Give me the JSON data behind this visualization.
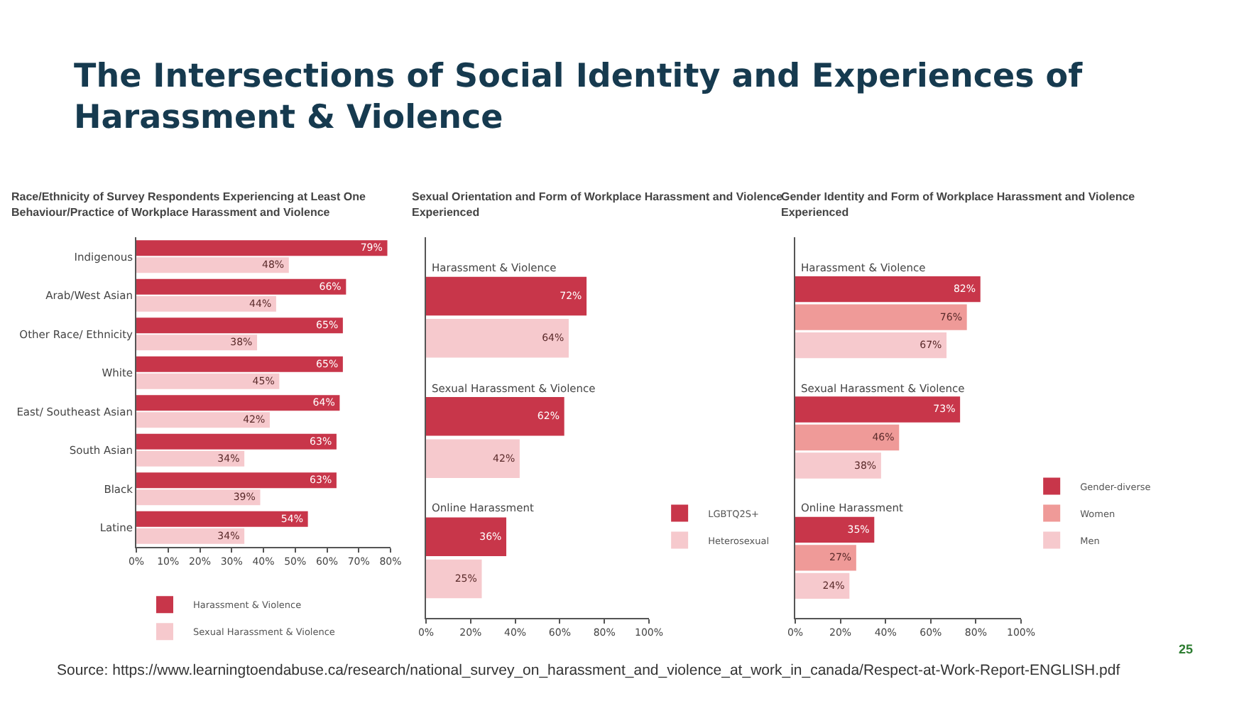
{
  "chart_data": [
    {
      "type": "other",
      "title": "The Intersections of Social Identity and Experiences of Harassment & Violence",
      "annotations": [
        "Source: https://www.learningtoendabuse.ca/research/national_survey_on_harassment_and_violence_at_work_in_canada/Respect-at-Work-Report-ENGLISH.pdf",
        "25"
      ]
    },
    {
      "type": "bar",
      "orientation": "horizontal",
      "title": "Race/Ethnicity of Survey Respondents Experiencing at Least One Behaviour/Practice of Workplace Harassment and Violence",
      "categories": [
        "Indigenous",
        "Arab/West Asian",
        "Other Race/ Ethnicity",
        "White",
        "East/ Southeast Asian",
        "South Asian",
        "Black",
        "Latine"
      ],
      "series": [
        {
          "name": "Harassment & Violence",
          "color": "#c8364a",
          "values": [
            79,
            66,
            65,
            65,
            64,
            63,
            63,
            54
          ],
          "value_labels": [
            "79%",
            "66%",
            "65%",
            "65%",
            "64%",
            "63%",
            "63%",
            "54%"
          ]
        },
        {
          "name": "Sexual Harassment & Violence",
          "color": "#f6c9cd",
          "values": [
            48,
            44,
            38,
            45,
            42,
            34,
            39,
            34
          ],
          "value_labels": [
            "48%",
            "44%",
            "38%",
            "45%",
            "42%",
            "34%",
            "39%",
            "34%"
          ]
        }
      ],
      "xlim": [
        0,
        80
      ],
      "xticks": [
        {
          "value": 0,
          "label": "0%"
        },
        {
          "value": 10,
          "label": "10%"
        },
        {
          "value": 20,
          "label": "20%"
        },
        {
          "value": 30,
          "label": "30%"
        },
        {
          "value": 40,
          "label": "40%"
        },
        {
          "value": 50,
          "label": "50%"
        },
        {
          "value": 60,
          "label": "60%"
        },
        {
          "value": 70,
          "label": "70%"
        },
        {
          "value": 80,
          "label": "80%"
        }
      ],
      "grid": false,
      "legend": "bottom"
    },
    {
      "type": "bar",
      "orientation": "horizontal",
      "title": "Sexual Orientation and Form of Workplace Harassment and Violence Experienced",
      "categories": [
        "Harassment & Violence",
        "Sexual Harassment & Violence",
        "Online Harassment"
      ],
      "series": [
        {
          "name": "LGBTQ2S+",
          "color": "#c8364a",
          "values": [
            72,
            62,
            36
          ],
          "value_labels": [
            "72%",
            "62%",
            "36%"
          ]
        },
        {
          "name": "Heterosexual",
          "color": "#f6c9cd",
          "values": [
            64,
            42,
            25
          ],
          "value_labels": [
            "64%",
            "42%",
            "25%"
          ]
        }
      ],
      "xlim": [
        0,
        100
      ],
      "xticks": [
        {
          "value": 0,
          "label": "0%"
        },
        {
          "value": 20,
          "label": "20%"
        },
        {
          "value": 40,
          "label": "40%"
        },
        {
          "value": 60,
          "label": "60%"
        },
        {
          "value": 80,
          "label": "80%"
        },
        {
          "value": 100,
          "label": "100%"
        }
      ],
      "grid": false,
      "legend": "right"
    },
    {
      "type": "bar",
      "orientation": "horizontal",
      "title": "Gender Identity and Form of Workplace Harassment and Violence Experienced",
      "categories": [
        "Harassment & Violence",
        "Sexual Harassment & Violence",
        "Online Harassment"
      ],
      "series": [
        {
          "name": "Gender-diverse",
          "color": "#c8364a",
          "values": [
            82,
            73,
            35
          ],
          "value_labels": [
            "82%",
            "73%",
            "35%"
          ]
        },
        {
          "name": "Women",
          "color": "#ef9a98",
          "values": [
            76,
            46,
            27
          ],
          "value_labels": [
            "76%",
            "46%",
            "27%"
          ]
        },
        {
          "name": "Men",
          "color": "#f6c9cd",
          "values": [
            67,
            38,
            24
          ],
          "value_labels": [
            "67%",
            "38%",
            "24%"
          ]
        }
      ],
      "xlim": [
        0,
        100
      ],
      "xticks": [
        {
          "value": 0,
          "label": "0%"
        },
        {
          "value": 20,
          "label": "20%"
        },
        {
          "value": 40,
          "label": "40%"
        },
        {
          "value": 60,
          "label": "60%"
        },
        {
          "value": 80,
          "label": "80%"
        },
        {
          "value": 100,
          "label": "100%"
        }
      ],
      "grid": false,
      "legend": "right"
    }
  ]
}
